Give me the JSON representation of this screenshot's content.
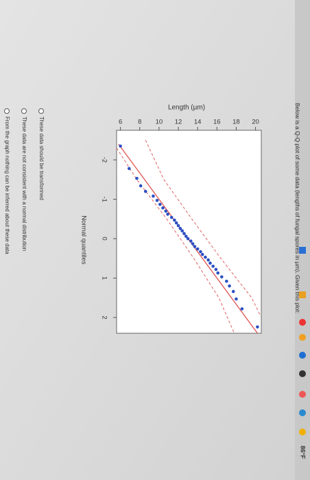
{
  "question": "Below is a Q-Q plot of some data (lengths of fungal spores in µm). Given this plot:",
  "chart_data": {
    "type": "scatter",
    "x_label": "Normal quantiles",
    "y_label": "Length (µm)",
    "x": [
      -2.35,
      -1.78,
      -1.53,
      -1.34,
      -1.2,
      -1.08,
      -0.97,
      -0.87,
      -0.78,
      -0.7,
      -0.62,
      -0.54,
      -0.47,
      -0.4,
      -0.33,
      -0.26,
      -0.2,
      -0.13,
      -0.06,
      0.0,
      0.06,
      0.13,
      0.2,
      0.26,
      0.33,
      0.4,
      0.47,
      0.54,
      0.62,
      0.7,
      0.78,
      0.87,
      0.97,
      1.08,
      1.2,
      1.34,
      1.53,
      1.78,
      2.24
    ],
    "series": [
      {
        "color": "#2b4fc4",
        "values": [
          6.0,
          6.9,
          7.7,
          8.1,
          8.6,
          9.4,
          9.8,
          10.1,
          10.4,
          10.7,
          10.9,
          11.3,
          11.6,
          11.8,
          12.0,
          12.2,
          12.4,
          12.6,
          12.8,
          13.0,
          13.3,
          13.5,
          13.7,
          14.0,
          14.3,
          14.5,
          14.8,
          15.1,
          15.3,
          15.6,
          15.9,
          16.1,
          16.5,
          17.0,
          17.3,
          17.7,
          18.0,
          18.6,
          20.2
        ]
      }
    ],
    "reference_line": {
      "color": "#e05050",
      "x": [
        -2.4,
        2.4
      ],
      "y": [
        5.8,
        20.2
      ]
    },
    "envelope": {
      "color": "#e06060",
      "upper": {
        "x": [
          -2.5,
          -1.5,
          -0.5,
          0.5,
          1.5,
          1.95
        ],
        "y": [
          8.6,
          10.5,
          13.4,
          16.4,
          19.6,
          20.5
        ]
      },
      "lower": {
        "x": [
          -2.3,
          -1.5,
          -0.5,
          0.5,
          1.5,
          2.4
        ],
        "y": [
          5.6,
          7.7,
          10.8,
          13.6,
          16.2,
          17.8
        ]
      }
    },
    "xlim": [
      -2.75,
      2.4
    ],
    "xticks": [
      -2,
      -1,
      0,
      1,
      2
    ],
    "ylim": [
      5.6,
      20.6
    ],
    "yticks": [
      6,
      8,
      10,
      12,
      14,
      16,
      18,
      20
    ]
  },
  "options": [
    "These data should be transformed",
    "These data are not consistent with a normal distribution",
    "From the graph nothing can be inferred about these data"
  ],
  "taskbar": {
    "temperature": "86°F"
  }
}
